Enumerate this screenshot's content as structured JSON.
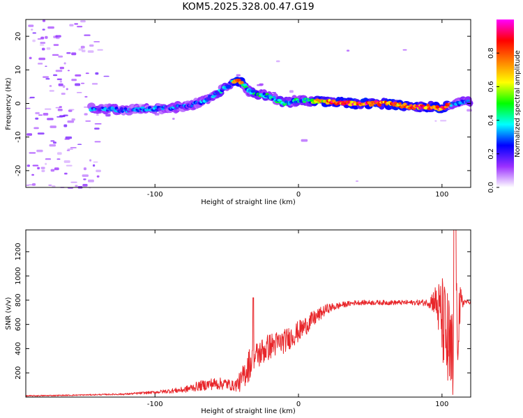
{
  "title": "KOM5.2025.328.00.47.G19",
  "chart_data": [
    {
      "type": "heatmap",
      "name": "spectrogram",
      "xlabel": "Height of straight line (km)",
      "ylabel": "Frequency (Hz)",
      "xlim": [
        -190,
        120
      ],
      "ylim": [
        -25,
        25
      ],
      "xticks": [
        -100,
        0,
        100
      ],
      "xtick_labels": [
        "-100",
        "0",
        "100"
      ],
      "yticks": [
        -20,
        -10,
        0,
        10,
        20
      ],
      "ytick_labels": [
        "-20",
        "-10",
        "0",
        "10",
        "20"
      ],
      "ridge": {
        "x": [
          -140,
          -120,
          -100,
          -80,
          -70,
          -60,
          -50,
          -45,
          -40,
          -35,
          -30,
          -20,
          -10,
          0,
          20,
          40,
          60,
          80,
          90,
          100,
          105,
          110,
          115,
          120
        ],
        "y": [
          -1.5,
          -2,
          -1.5,
          -1,
          0,
          2,
          5,
          6.5,
          6.5,
          4,
          3,
          2,
          0,
          1,
          0.5,
          0,
          0,
          -1,
          -1,
          -1.5,
          -0.5,
          0,
          0.5,
          0.5
        ],
        "peak_amplitude_x": [
          20,
          110
        ]
      },
      "colorbar": {
        "label": "Normalized spectral amplitude",
        "range": [
          0,
          1
        ],
        "ticks": [
          "0.0",
          "0.2",
          "0.4",
          "0.6",
          "0.8"
        ],
        "colors": [
          "#ffffff",
          "#9b30ff",
          "#0000ff",
          "#00ffff",
          "#00ff00",
          "#ffff00",
          "#ff8000",
          "#ff0000",
          "#ff00ff"
        ]
      }
    },
    {
      "type": "line",
      "name": "snr",
      "xlabel": "Height of straight line (km)",
      "ylabel": "SNR (v/v)",
      "xlim": [
        -190,
        120
      ],
      "ylim": [
        0,
        1380
      ],
      "xticks": [
        -100,
        0,
        100
      ],
      "xtick_labels": [
        "-100",
        "0",
        "100"
      ],
      "yticks": [
        200,
        400,
        600,
        800,
        1000,
        1200
      ],
      "ytick_labels": [
        "200",
        "400",
        "600",
        "800",
        "1000",
        "1200"
      ],
      "color": "#e8262a",
      "series": [
        {
          "name": "SNR",
          "x": [
            -190,
            -160,
            -140,
            -120,
            -100,
            -80,
            -70,
            -60,
            -50,
            -45,
            -40,
            -35,
            -30,
            -25,
            -20,
            -10,
            0,
            10,
            20,
            30,
            40,
            60,
            80,
            90,
            95,
            100,
            103,
            106,
            108,
            110,
            112,
            115,
            120
          ],
          "y": [
            10,
            15,
            20,
            25,
            40,
            60,
            90,
            110,
            110,
            90,
            130,
            260,
            330,
            380,
            420,
            460,
            540,
            640,
            730,
            760,
            780,
            780,
            780,
            780,
            800,
            650,
            480,
            300,
            200,
            500,
            700,
            790,
            780
          ],
          "spread": [
            5,
            5,
            5,
            8,
            12,
            25,
            40,
            50,
            50,
            40,
            90,
            140,
            120,
            120,
            110,
            100,
            90,
            70,
            40,
            25,
            20,
            20,
            20,
            30,
            120,
            350,
            450,
            500,
            500,
            450,
            250,
            30,
            10
          ]
        }
      ]
    }
  ]
}
